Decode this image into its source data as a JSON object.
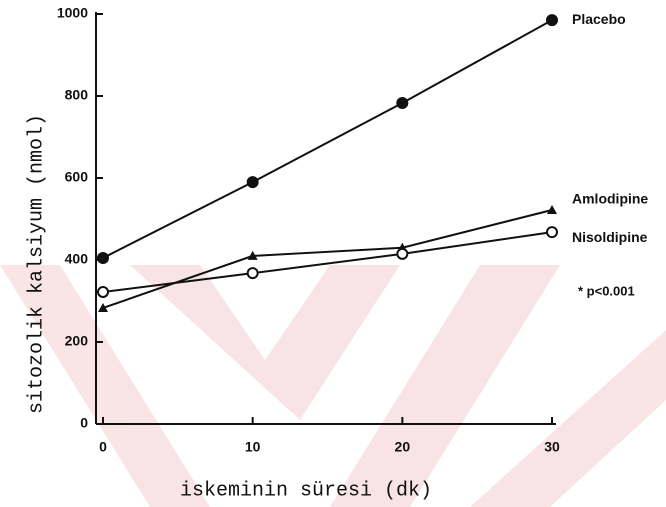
{
  "chart_data": {
    "type": "line",
    "x": [
      0,
      10,
      20,
      30
    ],
    "series": [
      {
        "name": "Placebo",
        "color": "#111111",
        "marker": "filled-circle",
        "values": [
          405,
          590,
          783,
          985
        ]
      },
      {
        "name": "Amlodipine",
        "color": "#111111",
        "marker": "filled-triangle",
        "values": [
          283,
          410,
          430,
          522
        ]
      },
      {
        "name": "Nisoldipine",
        "color": "#111111",
        "marker": "open-circle",
        "values": [
          322,
          368,
          415,
          468
        ]
      }
    ],
    "xlabel": "iskeminin süresi (dk)",
    "ylabel": "sitozolik kalsiyum (nmol)",
    "annotation": "* p<0.001",
    "xlim": [
      0,
      30
    ],
    "xticks": [
      0,
      10,
      20,
      30
    ],
    "ylim": [
      0,
      1000
    ],
    "yticks": [
      0,
      200,
      400,
      600,
      800,
      1000
    ],
    "grid": false
  }
}
